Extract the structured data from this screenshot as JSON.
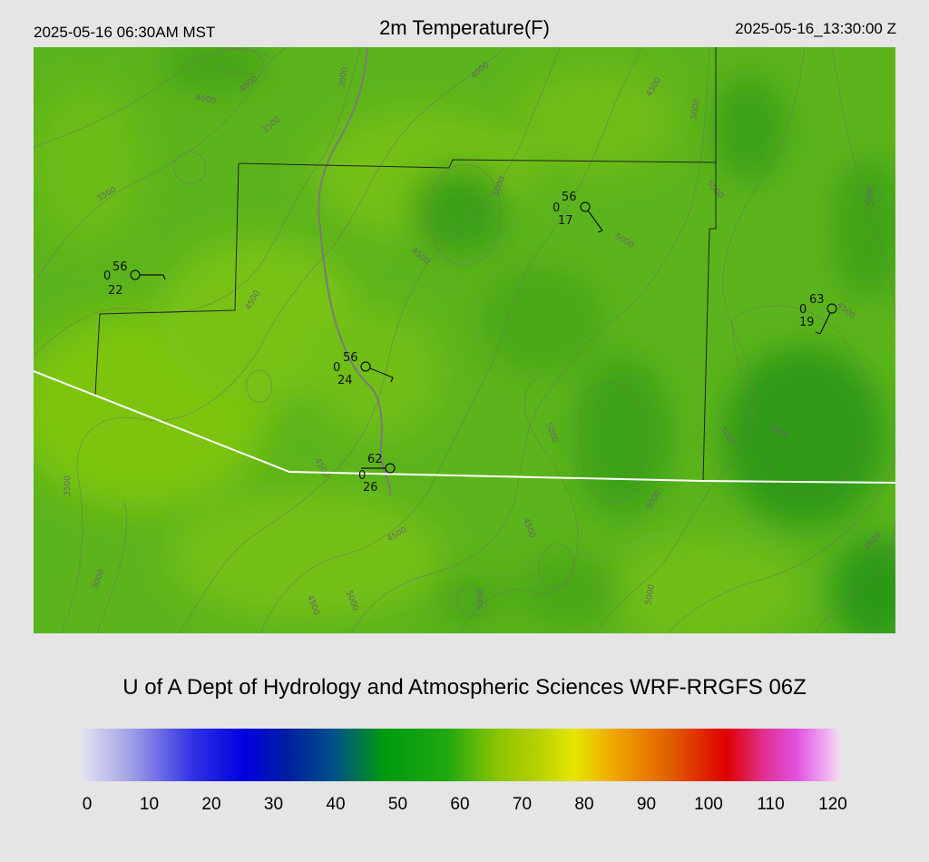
{
  "header": {
    "local_time": "2025-05-16 06:30AM MST",
    "title": "2m Temperature(F)",
    "utc_time": "2025-05-16_13:30:00 Z"
  },
  "credit": "U of A Dept of Hydrology and Atmospheric Sciences WRF-RRGFS 06Z",
  "colorbar": {
    "ticks": [
      "0",
      "10",
      "20",
      "30",
      "40",
      "50",
      "60",
      "70",
      "80",
      "90",
      "100",
      "110",
      "120"
    ],
    "stops": [
      {
        "v": 0,
        "c": "#e6e6f0"
      },
      {
        "v": 8,
        "c": "#a0a0e6"
      },
      {
        "v": 18,
        "c": "#3030e6"
      },
      {
        "v": 26,
        "c": "#0000e0"
      },
      {
        "v": 33,
        "c": "#0020a0"
      },
      {
        "v": 40,
        "c": "#00508a"
      },
      {
        "v": 48,
        "c": "#009a10"
      },
      {
        "v": 58,
        "c": "#20a810"
      },
      {
        "v": 66,
        "c": "#8cc400"
      },
      {
        "v": 72,
        "c": "#b4d000"
      },
      {
        "v": 78,
        "c": "#e6e600"
      },
      {
        "v": 85,
        "c": "#f0a000"
      },
      {
        "v": 93,
        "c": "#e06000"
      },
      {
        "v": 102,
        "c": "#e00000"
      },
      {
        "v": 108,
        "c": "#e03090"
      },
      {
        "v": 113,
        "c": "#e050e0"
      },
      {
        "v": 118,
        "c": "#f0b0f0"
      },
      {
        "v": 120,
        "c": "#f0e0f0"
      }
    ]
  },
  "contour_labels": [
    "3000",
    "3500",
    "4000",
    "4500",
    "5000",
    "5500",
    "6000"
  ],
  "stations": [
    {
      "id": "st1",
      "temp": "56",
      "cloud": "0",
      "dew": "22"
    },
    {
      "id": "st2",
      "temp": "56",
      "cloud": "0",
      "dew": "17"
    },
    {
      "id": "st3",
      "temp": "63",
      "cloud": "0",
      "dew": "19"
    },
    {
      "id": "st4",
      "temp": "56",
      "cloud": "0",
      "dew": "24"
    },
    {
      "id": "st5",
      "temp": "62",
      "cloud": "0",
      "dew": "26"
    }
  ]
}
